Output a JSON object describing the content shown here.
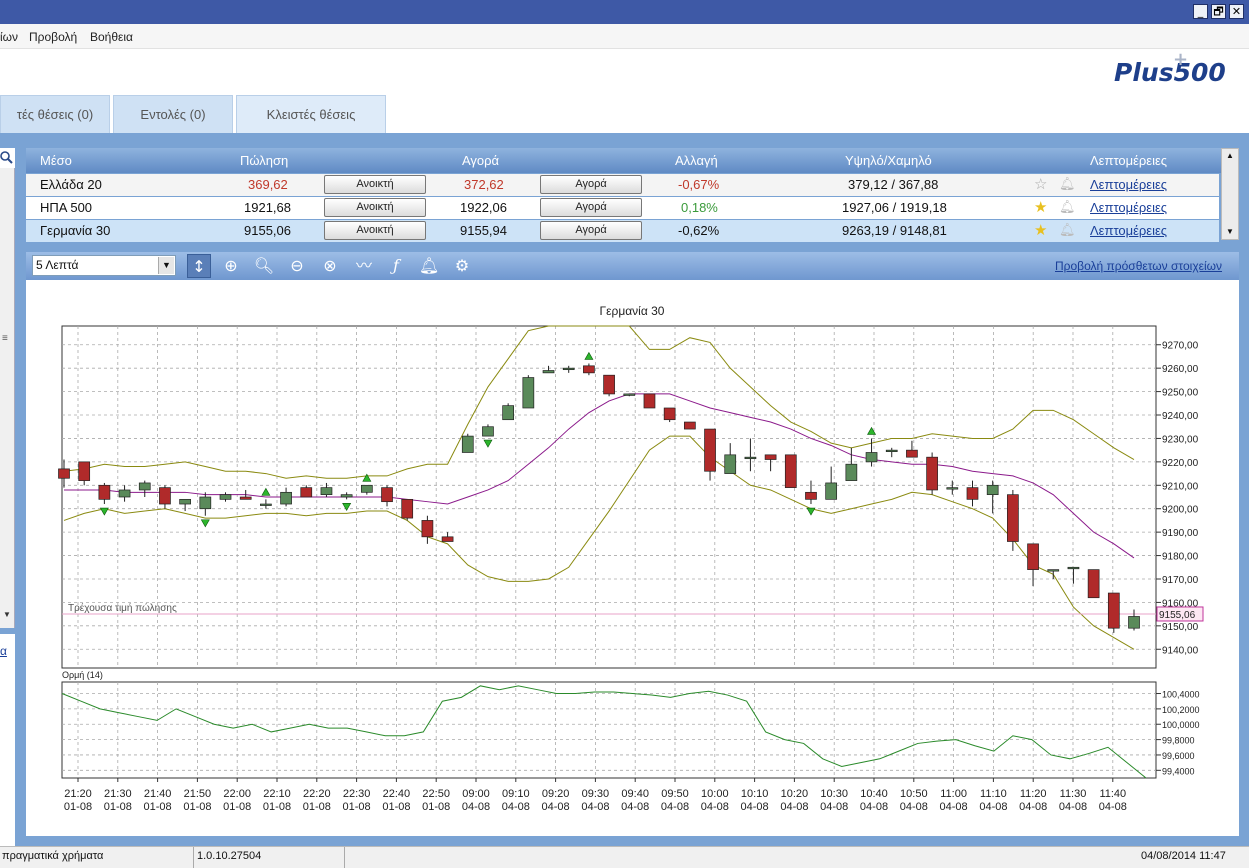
{
  "window": {
    "buttons": [
      "_",
      "🗗",
      "✕"
    ]
  },
  "menu": {
    "items": [
      "ίων",
      "Προβολή",
      "Βοήθεια"
    ]
  },
  "brand": {
    "logo": "Plus500",
    "logo_plus": "+"
  },
  "tabs": [
    {
      "label": "τές θέσεις (0)"
    },
    {
      "label": "Εντολές (0)"
    },
    {
      "label": "Κλειστές θέσεις"
    }
  ],
  "left_panel": {
    "search_icon": "search-icon",
    "scroll_mark": "≡",
    "link_fragment": "α"
  },
  "grid": {
    "headers": {
      "instrument": "Μέσο",
      "sell": "Πώληση",
      "buy": "Αγορά",
      "change": "Αλλαγή",
      "high_low": "Υψηλό/Χαμηλό",
      "details": "Λεπτομέρειες"
    },
    "rows": [
      {
        "instrument": "Ελλάδα 20",
        "sell": "369,62",
        "sell_button": "Ανοικτή",
        "buy": "372,62",
        "buy_button": "Αγορά",
        "change": "-0,67%",
        "high_low": "379,12 / 367,88",
        "star": "☆",
        "details": "Λεπτομέρειες"
      },
      {
        "instrument": "ΗΠΑ 500",
        "sell": "1921,68",
        "sell_button": "Ανοικτή",
        "buy": "1922,06",
        "buy_button": "Αγορά",
        "change": "0,18%",
        "high_low": "1927,06 / 1919,18",
        "star": "★",
        "details": "Λεπτομέρειες"
      },
      {
        "instrument": "Γερμανία 30",
        "sell": "9155,06",
        "sell_button": "Ανοικτή",
        "buy": "9155,94",
        "buy_button": "Αγορά",
        "change": "-0,62%",
        "high_low": "9263,19 / 9148,81",
        "star": "★",
        "details": "Λεπτομέρειες"
      }
    ]
  },
  "toolbar": {
    "interval": "5 Λεπτά",
    "more_link": "Προβολή πρόσθετων στοιχείων"
  },
  "colors": {
    "up": "#5a8a5a",
    "down": "#b02a2a",
    "ma": "#8b1a8b",
    "bands": "#8a8a10",
    "momentum": "#2a8a2a",
    "negative": "#c0392b",
    "positive": "#3a9a3a"
  },
  "chart_data": [
    {
      "type": "candlestick",
      "title": "Γερμανία 30",
      "current_price_label": "Τρέχουσα τιμή πώλησης",
      "current_price": 9155.06,
      "current_price_text": "9155,06",
      "ylim": [
        9132,
        9278
      ],
      "y_ticks": [
        9140,
        9150,
        9160,
        9170,
        9180,
        9190,
        9200,
        9210,
        9220,
        9230,
        9240,
        9250,
        9260,
        9270
      ],
      "y_tick_labels": [
        "9140,00",
        "9150,00",
        "9160,00",
        "9170,00",
        "9180,00",
        "9190,00",
        "9200,00",
        "9210,00",
        "9220,00",
        "9230,00",
        "9240,00",
        "9250,00",
        "9260,00",
        "9270,00"
      ],
      "x_ticks": [
        [
          "21:20",
          "01-08"
        ],
        [
          "21:30",
          "01-08"
        ],
        [
          "21:40",
          "01-08"
        ],
        [
          "21:50",
          "01-08"
        ],
        [
          "22:00",
          "01-08"
        ],
        [
          "22:10",
          "01-08"
        ],
        [
          "22:20",
          "01-08"
        ],
        [
          "22:30",
          "01-08"
        ],
        [
          "22:40",
          "01-08"
        ],
        [
          "22:50",
          "01-08"
        ],
        [
          "09:00",
          "04-08"
        ],
        [
          "09:10",
          "04-08"
        ],
        [
          "09:20",
          "04-08"
        ],
        [
          "09:30",
          "04-08"
        ],
        [
          "09:40",
          "04-08"
        ],
        [
          "09:50",
          "04-08"
        ],
        [
          "10:00",
          "04-08"
        ],
        [
          "10:10",
          "04-08"
        ],
        [
          "10:20",
          "04-08"
        ],
        [
          "10:30",
          "04-08"
        ],
        [
          "10:40",
          "04-08"
        ],
        [
          "10:50",
          "04-08"
        ],
        [
          "11:00",
          "04-08"
        ],
        [
          "11:10",
          "04-08"
        ],
        [
          "11:20",
          "04-08"
        ],
        [
          "11:30",
          "04-08"
        ],
        [
          "11:40",
          "04-08"
        ]
      ],
      "candles": [
        [
          9217,
          9221,
          9209,
          9213
        ],
        [
          9220,
          9220,
          9210,
          9212
        ],
        [
          9210,
          9211,
          9202,
          9204
        ],
        [
          9205,
          9210,
          9203,
          9208
        ],
        [
          9208,
          9212,
          9205,
          9211
        ],
        [
          9209,
          9210,
          9200,
          9202
        ],
        [
          9202,
          9204,
          9199,
          9204
        ],
        [
          9200,
          9207,
          9197,
          9205
        ],
        [
          9204,
          9207,
          9203,
          9206
        ],
        [
          9205,
          9208,
          9204,
          9204
        ],
        [
          9202,
          9204,
          9200,
          9202
        ],
        [
          9202,
          9209,
          9201,
          9207
        ],
        [
          9209,
          9210,
          9205,
          9205
        ],
        [
          9206,
          9211,
          9205,
          9209
        ],
        [
          9205,
          9207,
          9204,
          9206
        ],
        [
          9207,
          9210,
          9206,
          9210
        ],
        [
          9209,
          9210,
          9201,
          9203
        ],
        [
          9204,
          9204,
          9195,
          9196
        ],
        [
          9195,
          9197,
          9185,
          9188
        ],
        [
          9188,
          9190,
          9186,
          9186
        ],
        [
          9224,
          9232,
          9224,
          9231
        ],
        [
          9231,
          9236,
          9231,
          9235
        ],
        [
          9238,
          9245,
          9238,
          9244
        ],
        [
          9243,
          9257,
          9243,
          9256
        ],
        [
          9258,
          9261,
          9258,
          9259
        ],
        [
          9260,
          9261,
          9258,
          9260
        ],
        [
          9261,
          9262,
          9257,
          9258
        ],
        [
          9257,
          9257,
          9248,
          9249
        ],
        [
          9249,
          9249,
          9248,
          9249
        ],
        [
          9249,
          9248,
          9243,
          9243
        ],
        [
          9243,
          9243,
          9237,
          9238
        ],
        [
          9237,
          9236,
          9234,
          9234
        ],
        [
          9234,
          9234,
          9212,
          9216
        ],
        [
          9215,
          9228,
          9215,
          9223
        ],
        [
          9222,
          9230,
          9216,
          9222
        ],
        [
          9223,
          9223,
          9216,
          9221
        ],
        [
          9223,
          9223,
          9209,
          9209
        ],
        [
          9207,
          9212,
          9202,
          9204
        ],
        [
          9204,
          9218,
          9204,
          9211
        ],
        [
          9212,
          9226,
          9212,
          9219
        ],
        [
          9220,
          9230,
          9218,
          9224
        ],
        [
          9225,
          9226,
          9222,
          9225
        ],
        [
          9225,
          9229,
          9222,
          9222
        ],
        [
          9222,
          9224,
          9206,
          9208
        ],
        [
          9209,
          9212,
          9206,
          9209
        ],
        [
          9209,
          9212,
          9201,
          9204
        ],
        [
          9206,
          9212,
          9198,
          9210
        ],
        [
          9206,
          9208,
          9182,
          9186
        ],
        [
          9185,
          9185,
          9167,
          9174
        ],
        [
          9174,
          9174,
          9170,
          9174
        ],
        [
          9175,
          9175,
          9168,
          9175
        ],
        [
          9174,
          9174,
          9162,
          9162
        ],
        [
          9164,
          9164,
          9147,
          9149
        ],
        [
          9149,
          9157,
          9148,
          9154
        ]
      ],
      "ma": [
        9208,
        9208,
        9208,
        9207,
        9207,
        9207,
        9207,
        9206,
        9206,
        9206,
        9205,
        9205,
        9205,
        9205,
        9205,
        9205,
        9205,
        9204,
        9203,
        9202,
        9205,
        9208,
        9212,
        9219,
        9226,
        9234,
        9241,
        9246,
        9249,
        9249,
        9249,
        9246,
        9243,
        9241,
        9239,
        9237,
        9234,
        9230,
        9227,
        9223,
        9221,
        9220,
        9219,
        9219,
        9218,
        9216,
        9215,
        9214,
        9211,
        9206,
        9198,
        9190,
        9185,
        9179
      ],
      "upper_band": [
        9216,
        9217,
        9219,
        9218,
        9218,
        9219,
        9220,
        9218,
        9216,
        9216,
        9215,
        9213,
        9214,
        9213,
        9213,
        9214,
        9214,
        9217,
        9219,
        9219,
        9236,
        9252,
        9264,
        9276,
        9290,
        9300,
        9300,
        9288,
        9280,
        9268,
        9268,
        9273,
        9271,
        9260,
        9252,
        9244,
        9237,
        9233,
        9228,
        9226,
        9228,
        9230,
        9230,
        9232,
        9231,
        9230,
        9230,
        9234,
        9242,
        9242,
        9238,
        9232,
        9226,
        9221
      ],
      "lower_band": [
        9195,
        9198,
        9200,
        9198,
        9199,
        9200,
        9198,
        9196,
        9196,
        9197,
        9198,
        9198,
        9197,
        9198,
        9198,
        9199,
        9199,
        9195,
        9188,
        9185,
        9176,
        9171,
        9169,
        9169,
        9170,
        9175,
        9187,
        9199,
        9212,
        9225,
        9231,
        9231,
        9222,
        9216,
        9210,
        9208,
        9204,
        9200,
        9198,
        9200,
        9202,
        9204,
        9207,
        9206,
        9203,
        9200,
        9196,
        9187,
        9176,
        9172,
        9158,
        9150,
        9145,
        9140
      ],
      "buy_signals": [
        10,
        15,
        26,
        40
      ],
      "sell_signals": [
        2,
        7,
        14,
        21,
        37
      ],
      "hold_markers": [
        12,
        18,
        28,
        32,
        36,
        46,
        48,
        50
      ]
    },
    {
      "type": "line",
      "title": "Ορμή (14)",
      "ylim": [
        99.3,
        100.55
      ],
      "y_ticks": [
        99.4,
        99.6,
        99.8,
        100.0,
        100.2,
        100.4
      ],
      "y_tick_labels": [
        "99,4000",
        "99,6000",
        "99,8000",
        "100,0000",
        "100,2000",
        "100,4000"
      ],
      "values": [
        100.4,
        100.3,
        100.2,
        100.15,
        100.1,
        100.05,
        100.2,
        100.1,
        100.0,
        99.95,
        100.0,
        99.9,
        99.95,
        100.0,
        99.95,
        99.95,
        99.9,
        99.85,
        99.85,
        99.9,
        100.3,
        100.35,
        100.5,
        100.45,
        100.5,
        100.45,
        100.4,
        100.4,
        100.42,
        100.42,
        100.4,
        100.38,
        100.35,
        100.4,
        100.43,
        100.38,
        100.3,
        99.9,
        99.8,
        99.75,
        99.55,
        99.45,
        99.5,
        99.55,
        99.65,
        99.75,
        99.78,
        99.8,
        99.72,
        99.65,
        99.85,
        99.8,
        99.6,
        99.55,
        99.62,
        99.7,
        99.5,
        99.3
      ]
    }
  ],
  "status": {
    "mode": "πραγματικά χρήματα",
    "version": "1.0.10.27504",
    "datetime": "04/08/2014 11:47"
  }
}
